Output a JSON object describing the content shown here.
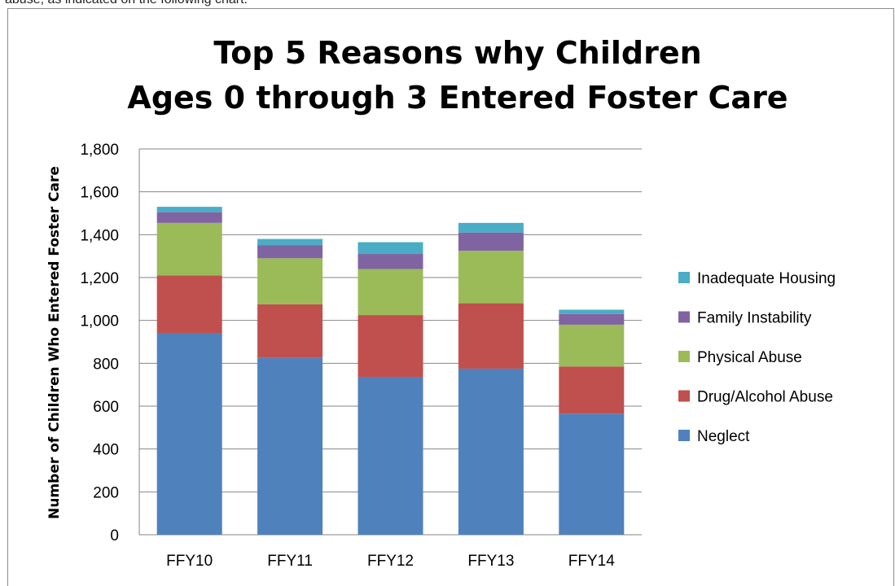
{
  "intro_text": "abuse, as indicated on the following chart.",
  "chart_data": {
    "type": "bar",
    "stacked": true,
    "title_lines": [
      "Top 5 Reasons why Children",
      "Ages 0 through 3 Entered Foster Care"
    ],
    "xlabel": "",
    "ylabel": "Number of Children Who Entered Foster Care",
    "categories": [
      "FFY10",
      "FFY11",
      "FFY12",
      "FFY13",
      "FFY14"
    ],
    "ylim": [
      0,
      1800
    ],
    "yticks": [
      0,
      200,
      400,
      600,
      800,
      1000,
      1200,
      1400,
      1600,
      1800
    ],
    "ytick_labels": [
      "0",
      "200",
      "400",
      "600",
      "800",
      "1,000",
      "1,200",
      "1,400",
      "1,600",
      "1,800"
    ],
    "grid": true,
    "legend_position": "right",
    "series": [
      {
        "name": "Neglect",
        "color": "#4f81bd",
        "values": [
          940,
          825,
          735,
          775,
          565
        ]
      },
      {
        "name": "Drug/Alcohol Abuse",
        "color": "#c0504d",
        "values": [
          270,
          250,
          290,
          305,
          220
        ]
      },
      {
        "name": "Physical Abuse",
        "color": "#9bbb59",
        "values": [
          245,
          215,
          215,
          245,
          195
        ]
      },
      {
        "name": "Family Instability",
        "color": "#8064a2",
        "values": [
          50,
          60,
          70,
          85,
          50
        ]
      },
      {
        "name": "Inadequate Housing",
        "color": "#4bacc6",
        "values": [
          25,
          30,
          55,
          45,
          20
        ]
      }
    ]
  }
}
